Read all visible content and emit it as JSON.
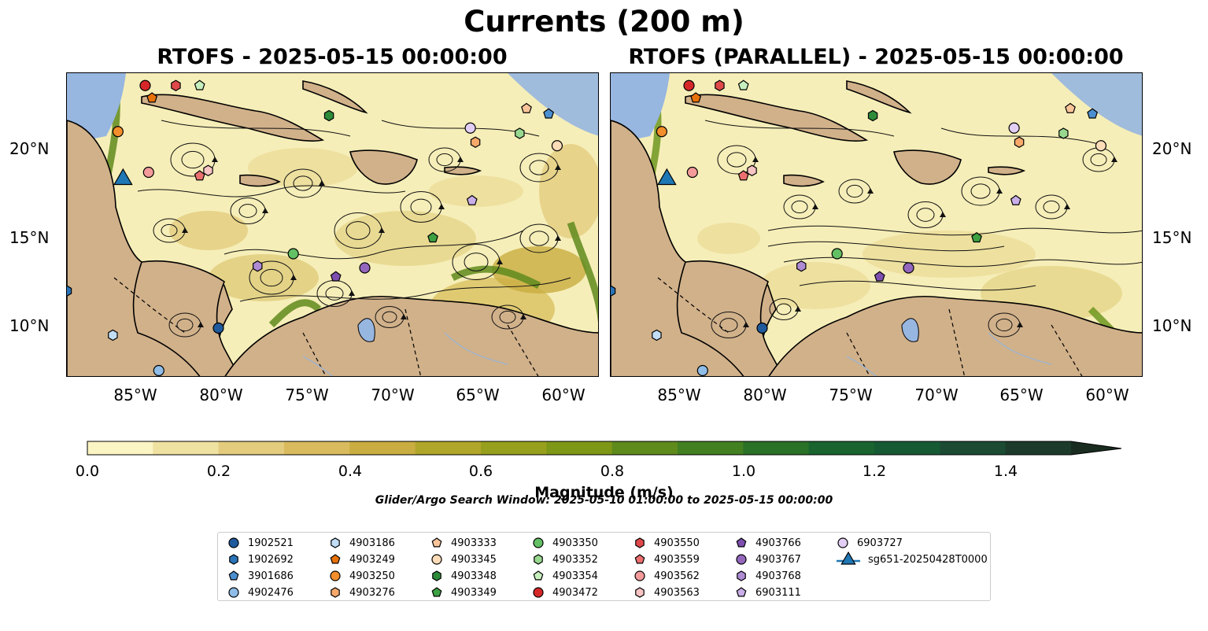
{
  "title": "Currents (200 m)",
  "panels": [
    {
      "title": "RTOFS - 2025-05-15 00:00:00"
    },
    {
      "title": "RTOFS (PARALLEL) - 2025-05-15 00:00:00"
    }
  ],
  "lat_labels": [
    "20°N",
    "15°N",
    "10°N"
  ],
  "lon_labels": [
    "85°W",
    "80°W",
    "75°W",
    "70°W",
    "65°W",
    "60°W"
  ],
  "colorbar": {
    "label": "Magnitude (m/s)",
    "ticks": [
      "0.0",
      "0.2",
      "0.4",
      "0.6",
      "0.8",
      "1.0",
      "1.2",
      "1.4"
    ],
    "colors": [
      "#fbf5c4",
      "#efe1a0",
      "#e3cc7e",
      "#d9bb5e",
      "#c9ad40",
      "#b0a62a",
      "#97a01c",
      "#7e9716",
      "#5f8a1c",
      "#428021",
      "#2a7228",
      "#1a642f",
      "#165a34",
      "#1b4b33",
      "#1c3b2a",
      "#1a2c20"
    ]
  },
  "search_window": "Glider/Argo Search Window: 2025-05-10 01:00:00 to 2025-05-15 00:00:00",
  "legend": [
    {
      "label": "1902521",
      "shape": "circle",
      "color": "#1f5a9c"
    },
    {
      "label": "1902692",
      "shape": "hexagon",
      "color": "#2a74b8"
    },
    {
      "label": "3901686",
      "shape": "pentagon",
      "color": "#4b8fd0"
    },
    {
      "label": "4902476",
      "shape": "circle",
      "color": "#8fbde8"
    },
    {
      "label": "4903186",
      "shape": "hexagon",
      "color": "#c2def5"
    },
    {
      "label": "4903249",
      "shape": "pentagon",
      "color": "#e8710a"
    },
    {
      "label": "4903250",
      "shape": "circle",
      "color": "#f28e2b"
    },
    {
      "label": "4903276",
      "shape": "hexagon",
      "color": "#f6a96b"
    },
    {
      "label": "4903333",
      "shape": "pentagon",
      "color": "#f9c49a"
    },
    {
      "label": "4903345",
      "shape": "circle",
      "color": "#fddcb8"
    },
    {
      "label": "4903348",
      "shape": "hexagon",
      "color": "#2e8b3a"
    },
    {
      "label": "4903349",
      "shape": "pentagon",
      "color": "#3da143"
    },
    {
      "label": "4903350",
      "shape": "circle",
      "color": "#63c064"
    },
    {
      "label": "4903352",
      "shape": "hexagon",
      "color": "#98d88f"
    },
    {
      "label": "4903354",
      "shape": "pentagon",
      "color": "#c7efbd"
    },
    {
      "label": "4903472",
      "shape": "circle",
      "color": "#d62728"
    },
    {
      "label": "4903550",
      "shape": "hexagon",
      "color": "#e0494a"
    },
    {
      "label": "4903559",
      "shape": "pentagon",
      "color": "#ec6f6f"
    },
    {
      "label": "4903562",
      "shape": "circle",
      "color": "#f39a9a"
    },
    {
      "label": "4903563",
      "shape": "hexagon",
      "color": "#f8c4c4"
    },
    {
      "label": "4903766",
      "shape": "pentagon",
      "color": "#7f4fb0"
    },
    {
      "label": "4903767",
      "shape": "circle",
      "color": "#9467bd"
    },
    {
      "label": "4903768",
      "shape": "hexagon",
      "color": "#ae8bd3"
    },
    {
      "label": "6903111",
      "shape": "pentagon",
      "color": "#c9aee8"
    },
    {
      "label": "6903727",
      "shape": "circle",
      "color": "#e3cff5"
    },
    {
      "label": "sg651-20250428T0000",
      "shape": "triangle",
      "color": "#1f77b4"
    }
  ],
  "floats": [
    {
      "id": "4903472",
      "lon": -85.0,
      "lat": 23.6
    },
    {
      "id": "4903550",
      "lon": -83.2,
      "lat": 23.6
    },
    {
      "id": "4903249",
      "lon": -84.6,
      "lat": 22.9
    },
    {
      "id": "4903354",
      "lon": -81.8,
      "lat": 23.6
    },
    {
      "id": "4903250",
      "lon": -86.6,
      "lat": 21.0
    },
    {
      "id": "4903348",
      "lon": -74.2,
      "lat": 21.9
    },
    {
      "id": "6903727",
      "lon": -65.9,
      "lat": 21.2
    },
    {
      "id": "4903276",
      "lon": -65.6,
      "lat": 20.4
    },
    {
      "id": "4903352",
      "lon": -63.0,
      "lat": 20.9
    },
    {
      "id": "4903333",
      "lon": -62.6,
      "lat": 22.3
    },
    {
      "id": "3901686",
      "lon": -61.3,
      "lat": 22.0
    },
    {
      "id": "4903345",
      "lon": -60.8,
      "lat": 20.2
    },
    {
      "id": "4903562",
      "lon": -84.8,
      "lat": 18.7
    },
    {
      "id": "4903563",
      "lon": -81.3,
      "lat": 18.8
    },
    {
      "id": "4903559",
      "lon": -81.8,
      "lat": 18.5
    },
    {
      "id": "6903111",
      "lon": -65.8,
      "lat": 17.1
    },
    {
      "id": "4903349",
      "lon": -68.1,
      "lat": 15.0
    },
    {
      "id": "4903350",
      "lon": -76.3,
      "lat": 14.1
    },
    {
      "id": "4903768",
      "lon": -78.4,
      "lat": 13.4
    },
    {
      "id": "4903766",
      "lon": -73.8,
      "lat": 12.8
    },
    {
      "id": "4903767",
      "lon": -72.1,
      "lat": 13.3
    },
    {
      "id": "1902521",
      "lon": -80.7,
      "lat": 9.9
    },
    {
      "id": "1902692",
      "lon": -89.6,
      "lat": 12.0
    },
    {
      "id": "4903186",
      "lon": -86.9,
      "lat": 9.5
    },
    {
      "id": "4902476",
      "lon": -84.2,
      "lat": 7.5
    }
  ],
  "glider": {
    "id": "sg651-20250428T0000",
    "lon": -86.3,
    "lat": 18.3
  }
}
